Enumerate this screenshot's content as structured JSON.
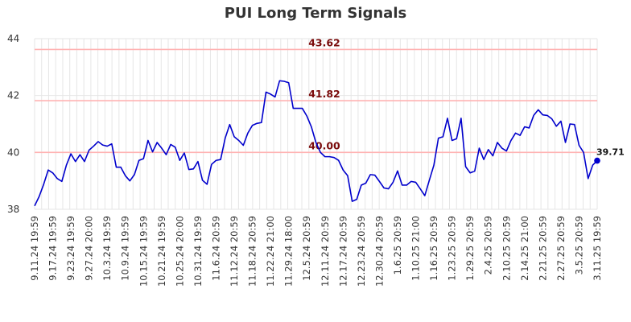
{
  "chart_data": {
    "type": "line",
    "title": "PUI Long Term Signals",
    "xlabel": "",
    "ylabel": "",
    "ylim": [
      38,
      44
    ],
    "yticks": [
      "38",
      "40",
      "42",
      "44"
    ],
    "grid": true,
    "x_tick_labels": [
      "9.11.24 19:59",
      "9.17.24 19:59",
      "9.23.24 19:59",
      "9.27.24 20:00",
      "10.3.24 19:59",
      "10.9.24 19:59",
      "10.15.24 19:59",
      "10.21.24 19:59",
      "10.25.24 20:00",
      "10.31.24 19:59",
      "11.6.24 20:59",
      "11.12.24 20:59",
      "11.18.24 20:59",
      "11.22.24 21:00",
      "11.29.24 18:00",
      "12.5.24 20:59",
      "12.11.24 20:59",
      "12.17.24 20:59",
      "12.23.24 20:59",
      "12.30.24 20:59",
      "1.6.25 20:59",
      "1.10.25 21:00",
      "1.16.25 20:59",
      "1.23.25 20:59",
      "1.29.25 20:59",
      "2.4.25 20:59",
      "2.10.25 20:59",
      "2.14.25 21:00",
      "2.21.25 20:59",
      "2.27.25 20:59",
      "3.5.25 20:59",
      "3.11.25 19:59"
    ],
    "levels": [
      {
        "value": 43.62,
        "label": "43.62",
        "color": "#ffb3b3"
      },
      {
        "value": 41.82,
        "label": "41.82",
        "color": "#ffb3b3"
      },
      {
        "value": 40.0,
        "label": "40.00",
        "color": "#ffb3b3"
      }
    ],
    "series": [
      {
        "color": "#0000cc",
        "values": [
          38.12,
          38.45,
          38.88,
          39.38,
          39.28,
          39.08,
          38.98,
          39.55,
          39.95,
          39.68,
          39.92,
          39.68,
          40.08,
          40.22,
          40.38,
          40.26,
          40.22,
          40.3,
          39.48,
          39.48,
          39.18,
          39.0,
          39.22,
          39.72,
          39.78,
          40.42,
          40.02,
          40.35,
          40.15,
          39.92,
          40.28,
          40.18,
          39.72,
          39.98,
          39.4,
          39.42,
          39.68,
          39.02,
          38.88,
          39.58,
          39.72,
          39.75,
          40.5,
          40.98,
          40.55,
          40.42,
          40.25,
          40.68,
          40.95,
          41.02,
          41.05,
          42.12,
          42.05,
          41.95,
          42.52,
          42.5,
          42.45,
          41.55,
          41.55,
          41.55,
          41.28,
          40.9,
          40.35,
          40.0,
          39.85,
          39.85,
          39.82,
          39.72,
          39.38,
          39.18,
          38.28,
          38.35,
          38.85,
          38.92,
          39.22,
          39.2,
          38.98,
          38.75,
          38.72,
          38.95,
          39.35,
          38.85,
          38.85,
          38.98,
          38.95,
          38.72,
          38.48,
          39.02,
          39.55,
          40.5,
          40.55,
          41.2,
          40.42,
          40.48,
          41.2,
          39.5,
          39.28,
          39.34,
          40.15,
          39.75,
          40.1,
          39.88,
          40.35,
          40.15,
          40.05,
          40.42,
          40.68,
          40.6,
          40.9,
          40.86,
          41.3,
          41.5,
          41.32,
          41.3,
          41.18,
          40.92,
          41.1,
          40.35,
          41.0,
          40.98,
          40.25,
          40.0,
          39.08,
          39.55,
          39.71
        ]
      }
    ],
    "last_value": {
      "value": 39.71,
      "label": "39.71"
    }
  }
}
